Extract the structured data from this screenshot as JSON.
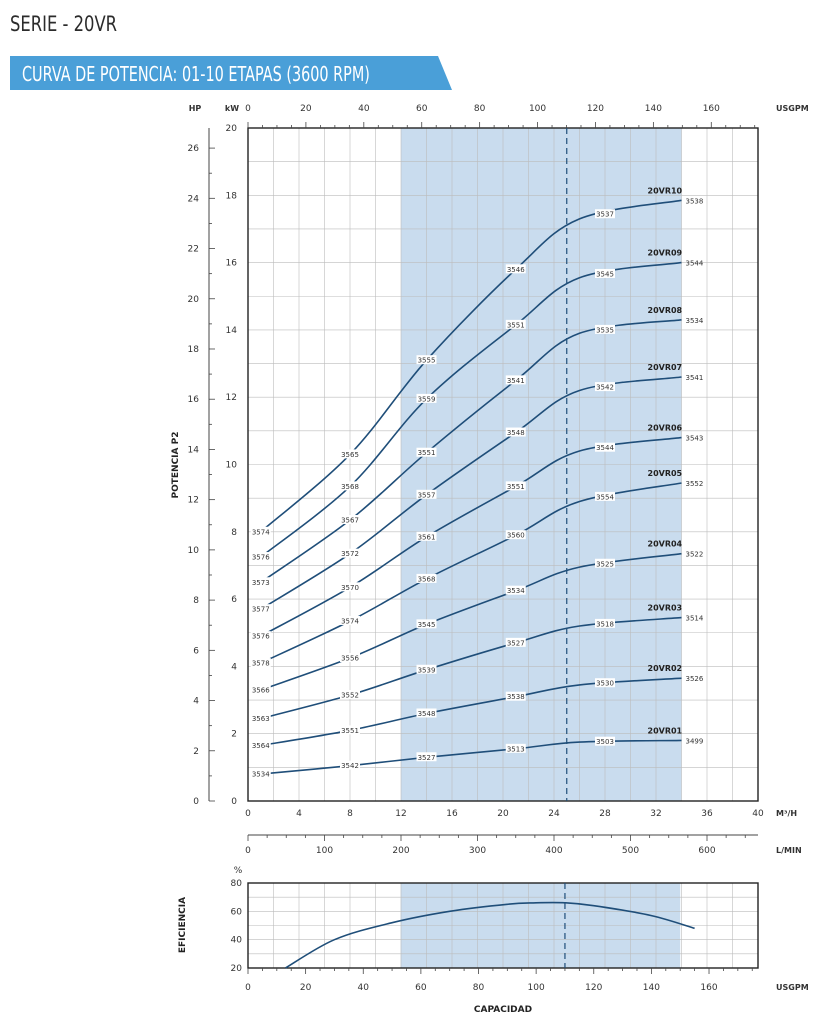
{
  "header": {
    "series_title": "SERIE - 20VR",
    "banner_title": "CURVA DE POTENCIA: 01-10 ETAPAS (3600 RPM)"
  },
  "colors": {
    "banner": "#4a9fd8",
    "band": "#c9dcee",
    "curve": "#1f4e79",
    "grid": "#bcbcbc"
  },
  "chart_data": [
    {
      "type": "line",
      "title": "",
      "ylabel": "POTENCIA P2",
      "y_kw_unit": "kW",
      "y_hp_unit": "HP",
      "x_usgpm_unit": "USGPM",
      "x_m3h_unit": "M³/H",
      "x_lmin_unit": "L/MIN",
      "xlim_m3h": [
        0,
        40
      ],
      "ylim_kw": [
        0,
        20
      ],
      "ylim_hp": [
        0,
        26.8
      ],
      "kw_ticks": [
        0,
        2,
        4,
        6,
        8,
        10,
        12,
        14,
        16,
        18,
        20
      ],
      "hp_ticks": [
        0,
        2,
        4,
        6,
        8,
        10,
        12,
        14,
        16,
        18,
        20,
        22,
        24,
        26
      ],
      "m3h_ticks": [
        0,
        4,
        8,
        12,
        16,
        20,
        24,
        28,
        32,
        36,
        40
      ],
      "usgpm_ticks": [
        0,
        20,
        40,
        60,
        80,
        100,
        120,
        140,
        160
      ],
      "lmin_ticks": [
        0,
        100,
        200,
        300,
        400,
        500,
        600
      ],
      "band_m3h": [
        12,
        34
      ],
      "dashed_m3h": 25,
      "grid": true,
      "series": [
        {
          "name": "20VR01",
          "x": [
            1,
            8,
            14,
            21,
            26,
            34
          ],
          "y": [
            0.8,
            1.05,
            1.3,
            1.55,
            1.75,
            1.8
          ],
          "label_x": [
            1,
            8,
            14,
            21,
            28
          ],
          "labels": [
            "3534",
            "3542",
            "3527",
            "3513",
            "3503"
          ],
          "end_label": "3499"
        },
        {
          "name": "20VR02",
          "x": [
            1,
            8,
            14,
            21,
            26,
            34
          ],
          "y": [
            1.65,
            2.1,
            2.6,
            3.1,
            3.45,
            3.65
          ],
          "label_x": [
            1,
            8,
            14,
            21,
            28
          ],
          "labels": [
            "3564",
            "3551",
            "3548",
            "3538",
            "3530"
          ],
          "end_label": "3526"
        },
        {
          "name": "20VR03",
          "x": [
            1,
            8,
            14,
            21,
            26,
            34
          ],
          "y": [
            2.45,
            3.15,
            3.9,
            4.7,
            5.2,
            5.45
          ],
          "label_x": [
            1,
            8,
            14,
            21,
            28
          ],
          "labels": [
            "3563",
            "3552",
            "3539",
            "3527",
            "3518"
          ],
          "end_label": "3514"
        },
        {
          "name": "20VR04",
          "x": [
            1,
            8,
            14,
            21,
            26,
            34
          ],
          "y": [
            3.3,
            4.25,
            5.25,
            6.25,
            6.95,
            7.35
          ],
          "label_x": [
            1,
            8,
            14,
            21,
            28
          ],
          "labels": [
            "3566",
            "3556",
            "3545",
            "3534",
            "3525"
          ],
          "end_label": "3522"
        },
        {
          "name": "20VR05",
          "x": [
            1,
            8,
            14,
            21,
            26,
            34
          ],
          "y": [
            4.1,
            5.35,
            6.6,
            7.9,
            8.9,
            9.45
          ],
          "label_x": [
            1,
            8,
            14,
            21,
            28
          ],
          "labels": [
            "3578",
            "3574",
            "3568",
            "3560",
            "3554"
          ],
          "end_label": "3552"
        },
        {
          "name": "20VR06",
          "x": [
            1,
            8,
            14,
            21,
            26,
            34
          ],
          "y": [
            4.9,
            6.35,
            7.85,
            9.35,
            10.4,
            10.8
          ],
          "label_x": [
            1,
            8,
            14,
            21,
            28
          ],
          "labels": [
            "3576",
            "3570",
            "3561",
            "3551",
            "3544"
          ],
          "end_label": "3543"
        },
        {
          "name": "20VR07",
          "x": [
            1,
            8,
            14,
            21,
            26,
            34
          ],
          "y": [
            5.7,
            7.35,
            9.1,
            10.95,
            12.2,
            12.6
          ],
          "label_x": [
            1,
            8,
            14,
            21,
            28
          ],
          "labels": [
            "3577",
            "3572",
            "3557",
            "3548",
            "3542"
          ],
          "end_label": "3541"
        },
        {
          "name": "20VR08",
          "x": [
            1,
            8,
            14,
            21,
            26,
            34
          ],
          "y": [
            6.5,
            8.35,
            10.35,
            12.5,
            13.9,
            14.3
          ],
          "label_x": [
            1,
            8,
            14,
            21,
            28
          ],
          "labels": [
            "3573",
            "3567",
            "3551",
            "3541",
            "3535"
          ],
          "end_label": "3534"
        },
        {
          "name": "20VR09",
          "x": [
            1,
            8,
            14,
            21,
            26,
            34
          ],
          "y": [
            7.25,
            9.35,
            11.95,
            14.15,
            15.55,
            16.0
          ],
          "label_x": [
            1,
            8,
            14,
            21,
            28
          ],
          "labels": [
            "3576",
            "3568",
            "3559",
            "3551",
            "3545"
          ],
          "end_label": "3544"
        },
        {
          "name": "20VR10",
          "x": [
            1,
            8,
            14,
            21,
            26,
            34
          ],
          "y": [
            8.0,
            10.3,
            13.1,
            15.8,
            17.3,
            17.85
          ],
          "label_x": [
            1,
            8,
            14,
            21,
            28
          ],
          "labels": [
            "3574",
            "3565",
            "3555",
            "3546",
            "3537"
          ],
          "end_label": "3538"
        }
      ]
    },
    {
      "type": "line",
      "title": "",
      "ylabel": "EFICIENCIA",
      "y_unit": "%",
      "xlabel": "CAPACIDAD",
      "x_unit": "USGPM",
      "xlim_usgpm": [
        0,
        177
      ],
      "ylim": [
        20,
        80
      ],
      "y_ticks": [
        20,
        40,
        60,
        80
      ],
      "usgpm_ticks": [
        0,
        20,
        40,
        60,
        80,
        100,
        120,
        140,
        160
      ],
      "band_usgpm": [
        53,
        150
      ],
      "dashed_usgpm": 110,
      "series": [
        {
          "x": [
            13,
            30,
            50,
            70,
            90,
            100,
            110,
            120,
            140,
            155
          ],
          "y": [
            20,
            40,
            52,
            60,
            65,
            66,
            66,
            64,
            57,
            48
          ]
        }
      ]
    }
  ]
}
